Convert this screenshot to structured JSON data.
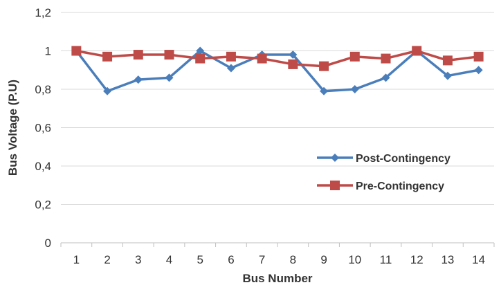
{
  "chart_data": {
    "type": "line",
    "title": "",
    "xlabel": "Bus Number",
    "ylabel": "Bus Voltage (P.U)",
    "categories": [
      "1",
      "2",
      "3",
      "4",
      "5",
      "6",
      "7",
      "8",
      "9",
      "10",
      "11",
      "12",
      "13",
      "14"
    ],
    "ylim": [
      0,
      1.2
    ],
    "yticks": [
      0,
      0.2,
      0.4,
      0.6,
      0.8,
      1,
      1.2
    ],
    "ytick_labels": [
      "0",
      "0,2",
      "0,4",
      "0,6",
      "0,8",
      "1",
      "1,2"
    ],
    "grid": true,
    "legend_position": "right",
    "series": [
      {
        "name": "Post-Contingency",
        "color": "#4a7ebb",
        "marker": "diamond",
        "values": [
          1.0,
          0.79,
          0.85,
          0.86,
          1.0,
          0.91,
          0.98,
          0.98,
          0.79,
          0.8,
          0.86,
          1.0,
          0.87,
          0.9
        ]
      },
      {
        "name": "Pre-Contingency",
        "color": "#be4b48",
        "marker": "square",
        "values": [
          1.0,
          0.97,
          0.98,
          0.98,
          0.96,
          0.97,
          0.96,
          0.93,
          0.92,
          0.97,
          0.96,
          1.0,
          0.95,
          0.97
        ]
      }
    ]
  }
}
